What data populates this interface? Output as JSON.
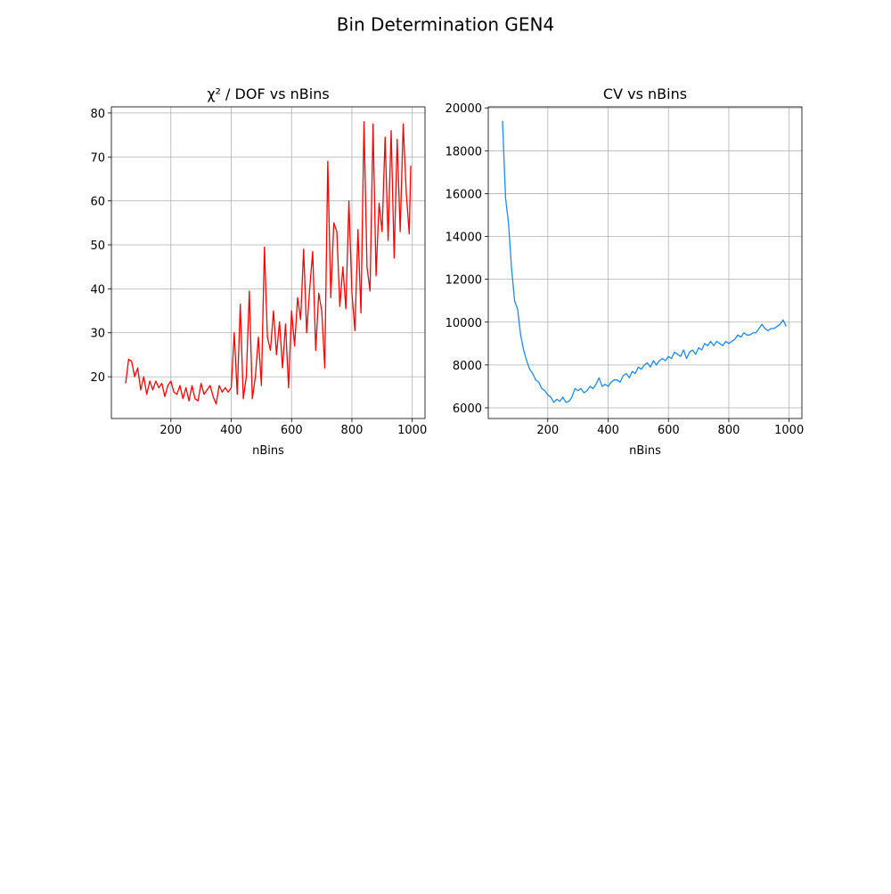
{
  "title": "Bin Determination GEN4",
  "chart_data": [
    {
      "type": "line",
      "title": "χ² / DOF vs nBins",
      "xlabel": "nBins",
      "color": "#ff0000",
      "grid": true,
      "xlim": [
        2.75,
        1042.25
      ],
      "xticks": [
        200,
        400,
        600,
        800,
        1000
      ],
      "ylim": [
        10.5,
        81.4
      ],
      "yticks": [
        20,
        30,
        40,
        50,
        60,
        70,
        80
      ],
      "x": [
        50,
        60,
        70,
        80,
        90,
        100,
        110,
        120,
        130,
        140,
        150,
        160,
        170,
        180,
        190,
        200,
        210,
        220,
        230,
        240,
        250,
        260,
        270,
        280,
        290,
        300,
        310,
        320,
        330,
        340,
        350,
        360,
        370,
        380,
        390,
        400,
        410,
        420,
        430,
        440,
        450,
        460,
        470,
        480,
        490,
        500,
        510,
        520,
        530,
        540,
        550,
        560,
        570,
        580,
        590,
        600,
        610,
        620,
        630,
        640,
        650,
        660,
        670,
        680,
        690,
        700,
        710,
        720,
        730,
        740,
        750,
        760,
        770,
        780,
        790,
        800,
        810,
        820,
        830,
        840,
        850,
        860,
        870,
        880,
        890,
        900,
        910,
        920,
        930,
        940,
        950,
        960,
        970,
        980,
        990,
        995
      ],
      "values": [
        18.5,
        24,
        23.5,
        20,
        22,
        17,
        20,
        16,
        19,
        17,
        19,
        17.5,
        18.5,
        15.5,
        18,
        19,
        16.5,
        16,
        18,
        15,
        17.5,
        14.5,
        18,
        15,
        14.5,
        18.5,
        16,
        17,
        18,
        15.5,
        13.8,
        18,
        16.5,
        17.5,
        16.5,
        17.5,
        30,
        16,
        36.5,
        15,
        20,
        39.5,
        15,
        20,
        29,
        18,
        49.5,
        29,
        26,
        35,
        25,
        32.5,
        22,
        32,
        17.5,
        35,
        27,
        38,
        33,
        49,
        30,
        40,
        48.5,
        26,
        39,
        35,
        22,
        69,
        38,
        55,
        53,
        36,
        45,
        35.5,
        60,
        39,
        30.5,
        53.5,
        34.5,
        78,
        45,
        39.5,
        77.5,
        43,
        59.5,
        53,
        74.5,
        51,
        76,
        47,
        74,
        53,
        77.5,
        62,
        52.5,
        68
      ]
    },
    {
      "type": "line",
      "title": "CV vs nBins",
      "xlabel": "nBins",
      "color": "#1e8ae8",
      "grid": true,
      "xlim": [
        2.75,
        1042.25
      ],
      "xticks": [
        200,
        400,
        600,
        800,
        1000
      ],
      "ylim": [
        5500,
        20050
      ],
      "yticks": [
        6000,
        8000,
        10000,
        12000,
        14000,
        16000,
        18000,
        20000
      ],
      "x": [
        50,
        60,
        70,
        80,
        90,
        100,
        110,
        120,
        130,
        140,
        150,
        160,
        170,
        180,
        190,
        200,
        210,
        220,
        230,
        240,
        250,
        260,
        270,
        280,
        290,
        300,
        310,
        320,
        330,
        340,
        350,
        360,
        370,
        380,
        390,
        400,
        410,
        420,
        430,
        440,
        450,
        460,
        470,
        480,
        490,
        500,
        510,
        520,
        530,
        540,
        550,
        560,
        570,
        580,
        590,
        600,
        610,
        620,
        630,
        640,
        650,
        660,
        670,
        680,
        690,
        700,
        710,
        720,
        730,
        740,
        750,
        760,
        770,
        780,
        790,
        800,
        810,
        820,
        830,
        840,
        850,
        860,
        870,
        880,
        890,
        900,
        910,
        920,
        930,
        940,
        950,
        960,
        970,
        980,
        990
      ],
      "values": [
        19400,
        15800,
        14600,
        12500,
        11000,
        10600,
        9400,
        8700,
        8200,
        7800,
        7600,
        7300,
        7200,
        6900,
        6800,
        6600,
        6500,
        6250,
        6400,
        6300,
        6500,
        6250,
        6300,
        6500,
        6900,
        6800,
        6900,
        6700,
        6800,
        7000,
        6900,
        7100,
        7400,
        7000,
        7100,
        7000,
        7200,
        7300,
        7300,
        7200,
        7500,
        7600,
        7400,
        7700,
        7600,
        7900,
        7800,
        8000,
        8100,
        7900,
        8200,
        8000,
        8200,
        8300,
        8200,
        8400,
        8300,
        8600,
        8500,
        8400,
        8700,
        8300,
        8600,
        8700,
        8500,
        8800,
        8700,
        9000,
        8900,
        9100,
        8900,
        9100,
        9000,
        8900,
        9100,
        9000,
        9100,
        9200,
        9400,
        9300,
        9500,
        9400,
        9400,
        9500,
        9500,
        9700,
        9900,
        9700,
        9600,
        9700,
        9700,
        9800,
        9900,
        10100,
        9800
      ]
    }
  ]
}
